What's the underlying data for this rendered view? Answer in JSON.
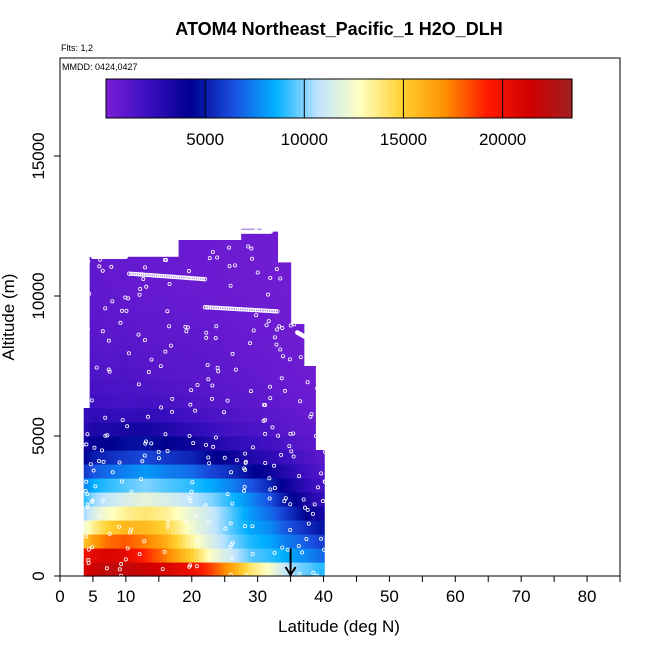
{
  "chart_data": {
    "type": "heatmap",
    "title": "ATOM4 Northeast_Pacific_1 H2O_DLH",
    "flights_label": "Flts: 1,2",
    "dates_label": "MMDD: 0424,0427",
    "xlabel": "Latitude (deg N)",
    "ylabel": "Altitude (m)",
    "xlim": [
      0,
      85
    ],
    "ylim": [
      0,
      18500
    ],
    "x_ticks": [
      0,
      5,
      10,
      20,
      30,
      40,
      50,
      60,
      70,
      80
    ],
    "x_minor_ticks": [
      15,
      25,
      35,
      45,
      55,
      65,
      75,
      85
    ],
    "y_ticks": [
      0,
      5000,
      10000,
      15000
    ],
    "colorbar": {
      "min": 0,
      "max": 23500,
      "ticks": [
        5000,
        10000,
        15000,
        20000
      ],
      "colors": [
        "#7a1fd6",
        "#3a0fc0",
        "#00008f",
        "#1a4fe0",
        "#00b0ff",
        "#bfe4ff",
        "#ffffc0",
        "#ffd030",
        "#ff9000",
        "#ff1a00",
        "#d00000",
        "#a02020"
      ]
    },
    "arrow": {
      "x": 35,
      "y_top": 700,
      "y_bottom": 0
    },
    "columns": [
      {
        "lat": 4,
        "top": 6000,
        "profile": [
          21000,
          20000,
          13500,
          10500,
          8500,
          5000,
          3000,
          2000,
          1500,
          1200,
          1000,
          900
        ]
      },
      {
        "lat": 5,
        "top": 11400,
        "profile": [
          21500,
          20500,
          14500,
          11500,
          9500,
          5500,
          3500,
          2200,
          1500,
          1100,
          900,
          800
        ]
      },
      {
        "lat": 7,
        "top": 11400,
        "profile": [
          22000,
          21000,
          16000,
          12500,
          10000,
          6000,
          3500,
          2000,
          1400,
          1000,
          800,
          700
        ]
      },
      {
        "lat": 10,
        "top": 11400,
        "profile": [
          22000,
          20500,
          17000,
          13500,
          10500,
          6500,
          4000,
          1800,
          1500,
          1100,
          800,
          700
        ]
      },
      {
        "lat": 13,
        "top": 11400,
        "profile": [
          21500,
          19000,
          16500,
          14000,
          11000,
          7000,
          4000,
          2000,
          1300,
          900,
          700,
          600
        ]
      },
      {
        "lat": 16,
        "top": 11400,
        "profile": [
          21000,
          17500,
          15500,
          13500,
          10500,
          6500,
          3500,
          1800,
          1200,
          900,
          700,
          600
        ]
      },
      {
        "lat": 20,
        "top": 12000,
        "profile": [
          20000,
          15000,
          12500,
          12000,
          10000,
          6000,
          3000,
          1500,
          1100,
          900,
          600,
          500
        ]
      },
      {
        "lat": 23,
        "top": 12000,
        "profile": [
          18500,
          12500,
          11000,
          11000,
          9500,
          5000,
          2500,
          1300,
          1000,
          800,
          500,
          500
        ]
      },
      {
        "lat": 26,
        "top": 12000,
        "profile": [
          16500,
          11000,
          9500,
          9500,
          8500,
          4500,
          2000,
          1200,
          900,
          700,
          500,
          400
        ]
      },
      {
        "lat": 29,
        "top": 12400,
        "profile": [
          14000,
          9500,
          8500,
          8000,
          7500,
          3500,
          1800,
          1000,
          800,
          600,
          400,
          400
        ]
      },
      {
        "lat": 32,
        "top": 12300,
        "profile": [
          12500,
          9000,
          8000,
          7000,
          6000,
          3000,
          1500,
          900,
          700,
          500,
          400,
          300
        ]
      },
      {
        "lat": 34,
        "top": 11200,
        "profile": [
          11000,
          8500,
          7000,
          6000,
          4500,
          2500,
          1200,
          800,
          600,
          400,
          300,
          300
        ]
      },
      {
        "lat": 36,
        "top": 9000,
        "profile": [
          10000,
          8000,
          6500,
          5000,
          3500,
          2000,
          1000,
          700,
          500,
          400,
          300,
          300
        ]
      },
      {
        "lat": 38,
        "top": 7500,
        "profile": [
          9500,
          7500,
          6000,
          4000,
          2500,
          1500,
          900,
          600,
          400,
          300,
          300,
          300
        ]
      },
      {
        "lat": 39.5,
        "top": 4500,
        "profile": [
          9000,
          7000,
          5500,
          3500,
          2000,
          1200,
          800,
          500,
          400,
          300,
          300,
          300
        ]
      }
    ],
    "profile_altitudes": [
      250,
      750,
      1500,
      2250,
      3000,
      4000,
      5000,
      6000,
      7000,
      8500,
      10000,
      11500
    ],
    "flight_track_segments": [
      {
        "x": [
          5,
          10
        ],
        "y": [
          11400,
          11400
        ]
      },
      {
        "x": [
          10.5,
          22
        ],
        "y": [
          10800,
          10600
        ]
      },
      {
        "x": [
          22,
          33
        ],
        "y": [
          9600,
          9450
        ]
      },
      {
        "x": [
          27,
          32
        ],
        "y": [
          12300,
          12300
        ]
      },
      {
        "x": [
          36,
          37.5
        ],
        "y": [
          8700,
          8500
        ]
      }
    ]
  }
}
